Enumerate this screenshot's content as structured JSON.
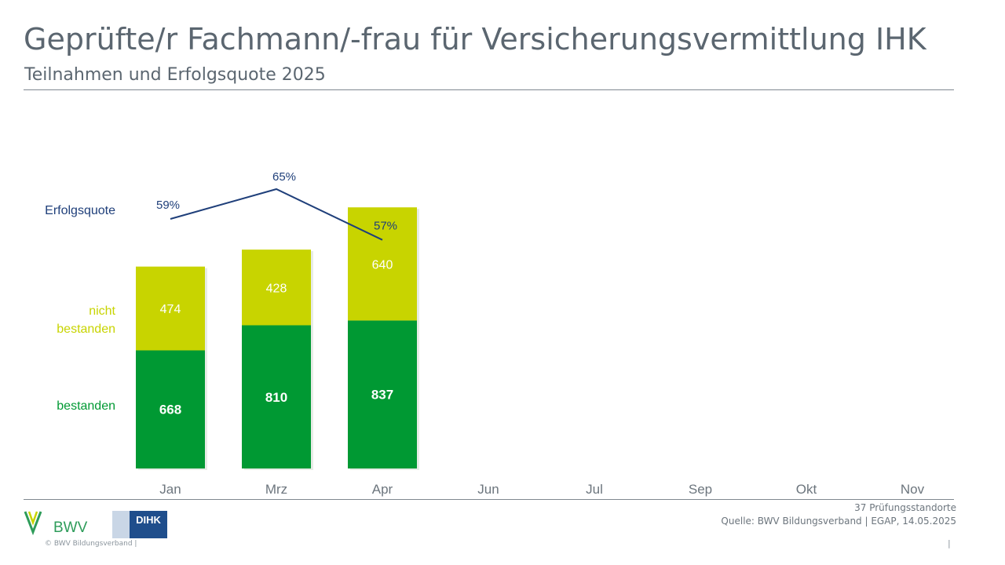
{
  "header": {
    "title": "Geprüfte/r Fachmann/-frau für Versicherungsvermittlung IHK",
    "subtitle": "Teilnahmen und Erfolgsquote 2025"
  },
  "colors": {
    "passed": "#009933",
    "failed": "#c8d400",
    "rate_line": "#1f3f7a",
    "text": "#5b6670"
  },
  "chart_data": {
    "type": "bar",
    "stacked": true,
    "categories": [
      "Jan",
      "Mrz",
      "Apr",
      "Jun",
      "Jul",
      "Sep",
      "Okt",
      "Nov"
    ],
    "series": [
      {
        "name": "bestanden",
        "values": [
          668,
          810,
          837,
          null,
          null,
          null,
          null,
          null
        ]
      },
      {
        "name": "nicht bestanden",
        "values": [
          474,
          428,
          640,
          null,
          null,
          null,
          null,
          null
        ]
      }
    ],
    "line_series": {
      "name": "Erfolgsquote",
      "values": [
        59,
        65,
        57,
        null,
        null,
        null,
        null,
        null
      ],
      "labels": [
        "59%",
        "65%",
        "57%"
      ]
    },
    "legend_labels": {
      "rate": "Erfolgsquote",
      "failed_line1": "nicht",
      "failed_line2": "bestanden",
      "passed": "bestanden"
    },
    "ylim": [
      0,
      1500
    ],
    "grid": false
  },
  "footer": {
    "locations": "37 Prüfungsstandorte",
    "source": "Quelle: BWV Bildungsverband | EGAP, 14.05.2025",
    "copyright": "©  BWV Bildungsverband  |",
    "pipe": "|",
    "logo_bwv_text": "BWV",
    "logo_dihk_text": "DIHK"
  }
}
